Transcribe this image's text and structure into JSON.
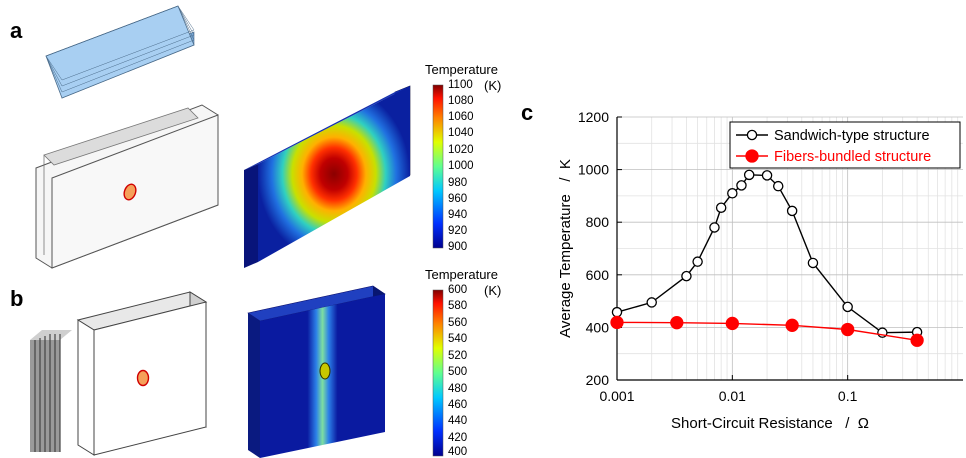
{
  "panels": {
    "a": "a",
    "b": "b",
    "c": "c"
  },
  "colorbar_a": {
    "title": "Temperature",
    "unit": "(K)",
    "ticks": [
      "1100",
      "1080",
      "1060",
      "1040",
      "1020",
      "1000",
      "980",
      "960",
      "940",
      "920",
      "900"
    ]
  },
  "colorbar_b": {
    "title": "Temperature",
    "unit": "(K)",
    "ticks": [
      "600",
      "580",
      "560",
      "540",
      "520",
      "500",
      "480",
      "460",
      "440",
      "420",
      "400"
    ]
  },
  "chart_data": {
    "type": "line",
    "xlabel": "Short-Circuit Resistance   /  Ω",
    "ylabel": "Average Temperature   /  K",
    "x_scale": "log",
    "xlim": [
      0.001,
      1
    ],
    "ylim": [
      200,
      1200
    ],
    "x_tick_labels": [
      "0.001",
      "0.01",
      "0.1"
    ],
    "y_tick_labels": [
      "200",
      "400",
      "600",
      "800",
      "1000",
      "1200"
    ],
    "grid": true,
    "legend_position": "top-right",
    "series": [
      {
        "name": "Sandwich-type structure",
        "color": "#000000",
        "marker": "open-circle",
        "x": [
          0.001,
          0.002,
          0.004,
          0.005,
          0.007,
          0.008,
          0.01,
          0.012,
          0.014,
          0.02,
          0.025,
          0.033,
          0.05,
          0.1,
          0.2,
          0.4
        ],
        "y": [
          458,
          495,
          595,
          650,
          780,
          855,
          910,
          940,
          980,
          978,
          937,
          843,
          645,
          478,
          380,
          382
        ]
      },
      {
        "name": "Fibers-bundled structure",
        "color": "#ff0000",
        "marker": "filled-circle",
        "x": [
          0.001,
          0.0033,
          0.01,
          0.033,
          0.1,
          0.4
        ],
        "y": [
          419,
          418,
          415,
          408,
          392,
          351
        ]
      }
    ]
  }
}
